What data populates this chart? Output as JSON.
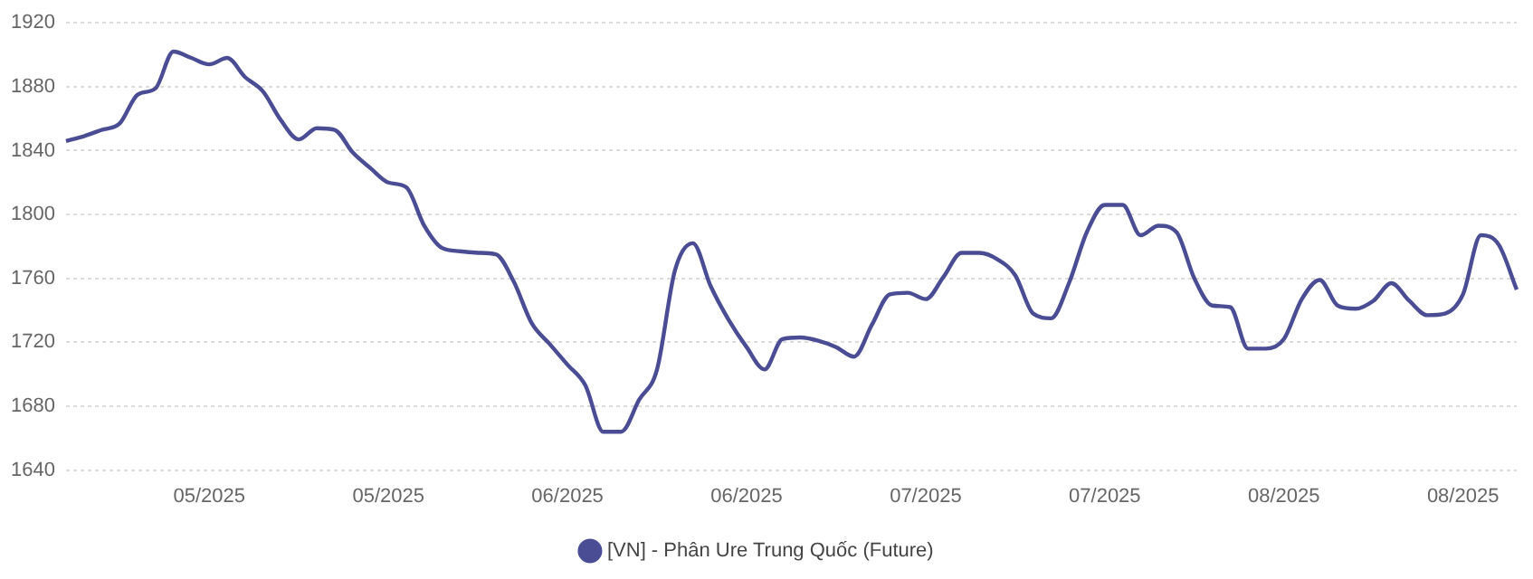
{
  "chart_data": {
    "type": "line",
    "categories": [
      null,
      null,
      null,
      null,
      null,
      null,
      null,
      null,
      "05/2025",
      null,
      null,
      null,
      null,
      null,
      null,
      null,
      null,
      null,
      "05/2025",
      null,
      null,
      null,
      null,
      null,
      null,
      null,
      null,
      null,
      "06/2025",
      null,
      null,
      null,
      null,
      null,
      null,
      null,
      null,
      null,
      "06/2025",
      null,
      null,
      null,
      null,
      null,
      null,
      null,
      null,
      null,
      "07/2025",
      null,
      null,
      null,
      null,
      null,
      null,
      null,
      null,
      null,
      "07/2025",
      null,
      null,
      null,
      null,
      null,
      null,
      null,
      null,
      null,
      "08/2025",
      null,
      null,
      null,
      null,
      null,
      null,
      null,
      null,
      null,
      "08/2025",
      null,
      null,
      null
    ],
    "series": [
      {
        "name": "[VN] - Phân Ure Trung Quốc (Future)",
        "color": "#4a4c94",
        "values": [
          1846,
          1849,
          1853,
          1857,
          1875,
          1879,
          1902,
          1898,
          1894,
          1898,
          1886,
          1877,
          1859,
          1847,
          1854,
          1853,
          1839,
          1829,
          1820,
          1817,
          1793,
          1779,
          1777,
          1776,
          1775,
          1758,
          1732,
          1719,
          1706,
          1693,
          1664,
          1664,
          1684,
          1703,
          1765,
          1782,
          1755,
          1734,
          1717,
          1703,
          1722,
          1723,
          1721,
          1717,
          1711,
          1731,
          1750,
          1751,
          1747,
          1761,
          1776,
          1776,
          1772,
          1762,
          1738,
          1735,
          1757,
          1789,
          1806,
          1806,
          1787,
          1793,
          1789,
          1760,
          1743,
          1742,
          1716,
          1716,
          1722,
          1747,
          1759,
          1743,
          1741,
          1746,
          1757,
          1746,
          1737,
          1738,
          1750,
          1787,
          1781,
          1753
        ]
      }
    ],
    "ylim": [
      1640,
      1920
    ],
    "yticks": [
      1640,
      1680,
      1720,
      1760,
      1800,
      1840,
      1880,
      1920
    ],
    "grid": "y",
    "legend": "bottom",
    "marker": "none",
    "line_style": "solid"
  }
}
